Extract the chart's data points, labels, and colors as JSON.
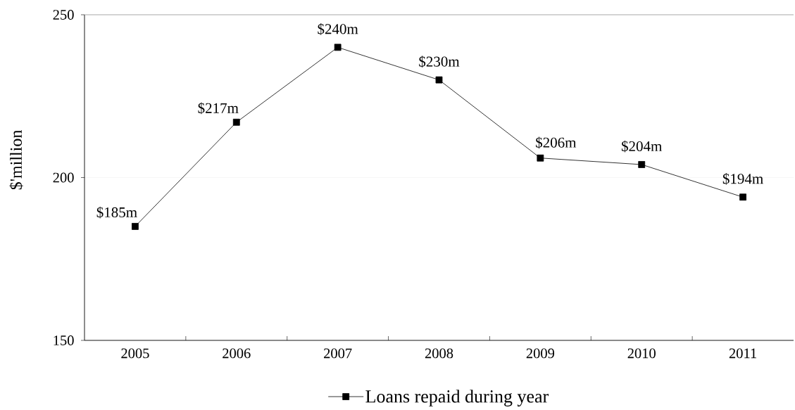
{
  "chart_data": {
    "type": "line",
    "ylabel": "$'million",
    "categories": [
      "2005",
      "2006",
      "2007",
      "2008",
      "2009",
      "2010",
      "2011"
    ],
    "series": [
      {
        "name": "Loans repaid during year",
        "color": "#000000",
        "values": [
          185,
          217,
          240,
          230,
          206,
          204,
          194
        ],
        "value_labels": [
          "$185m",
          "$217m",
          "$240m",
          "$230m",
          "$206m",
          "$204m",
          "$194m"
        ]
      }
    ],
    "ylim": [
      150,
      250
    ],
    "yticks": [
      150,
      200,
      250
    ],
    "grid": "y",
    "legend": "bottom",
    "marker": "square",
    "line_style": "solid"
  }
}
